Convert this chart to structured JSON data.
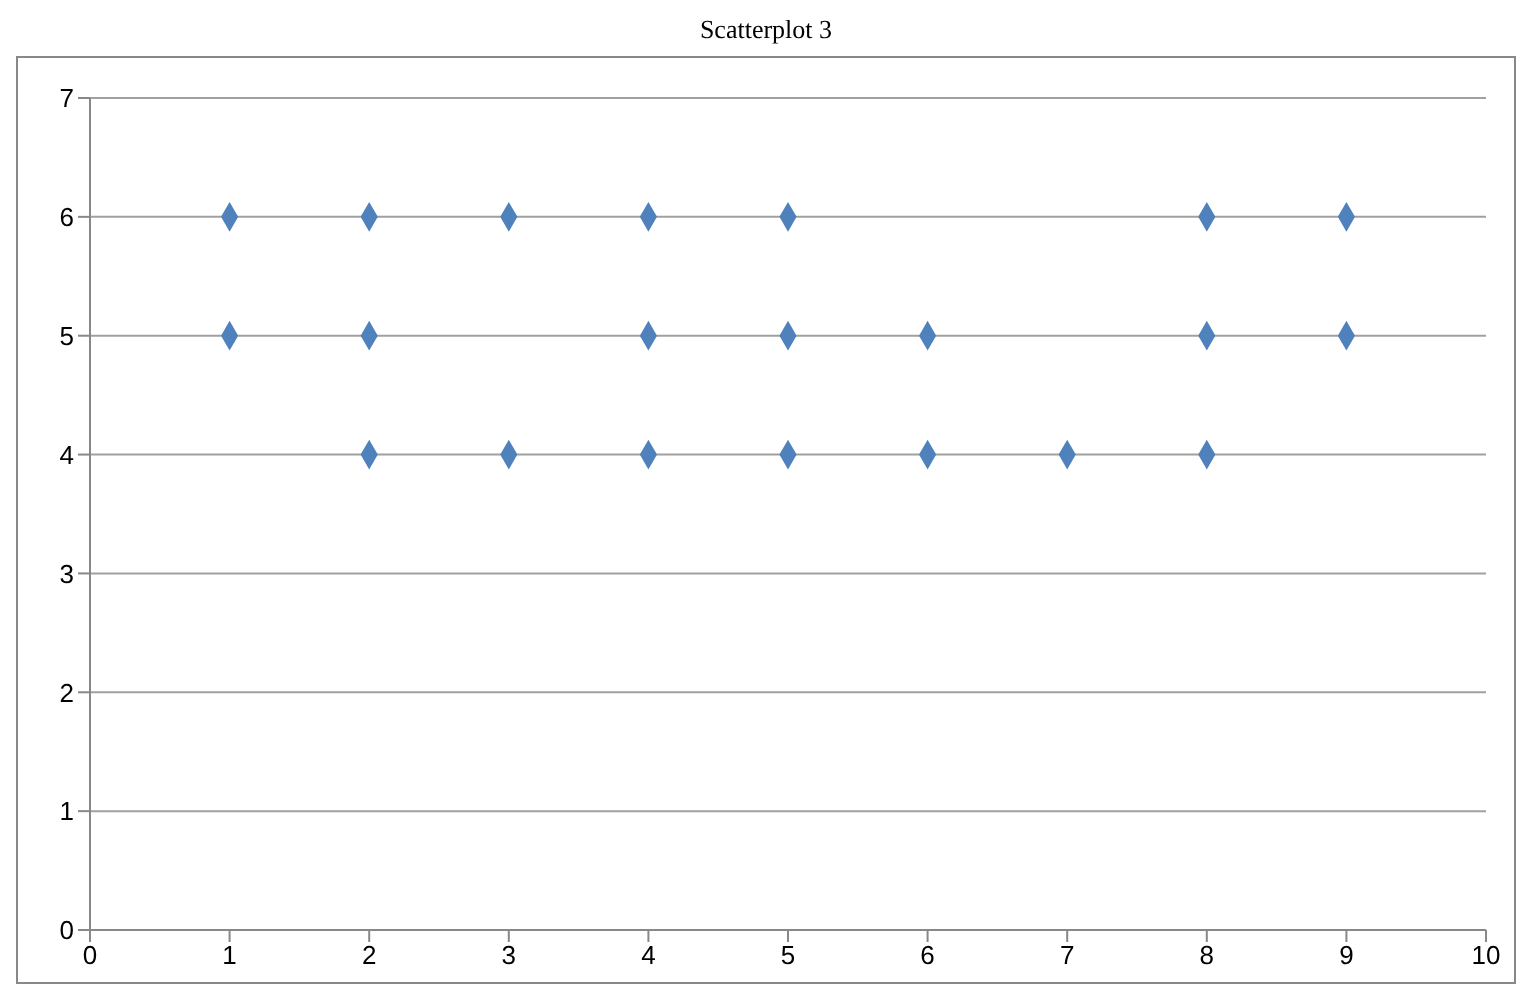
{
  "chart_data": {
    "type": "scatter",
    "title": "Scatterplot 3",
    "x": [
      1,
      2,
      3,
      4,
      5,
      8,
      9,
      1,
      2,
      4,
      5,
      6,
      8,
      9,
      2,
      3,
      4,
      5,
      6,
      7,
      8
    ],
    "series": [
      {
        "color": "#4f81bd",
        "values": [
          6,
          6,
          6,
          6,
          6,
          6,
          6,
          5,
          5,
          5,
          5,
          5,
          5,
          5,
          4,
          4,
          4,
          4,
          4,
          4,
          4
        ]
      }
    ],
    "xlim": [
      0,
      10
    ],
    "xticks": [
      0,
      1,
      2,
      3,
      4,
      5,
      6,
      7,
      8,
      9,
      10
    ],
    "ylim": [
      0,
      7
    ],
    "yticks": [
      0,
      1,
      2,
      3,
      4,
      5,
      6,
      7
    ],
    "grid": "y",
    "marker": "diamond",
    "legend": false
  }
}
